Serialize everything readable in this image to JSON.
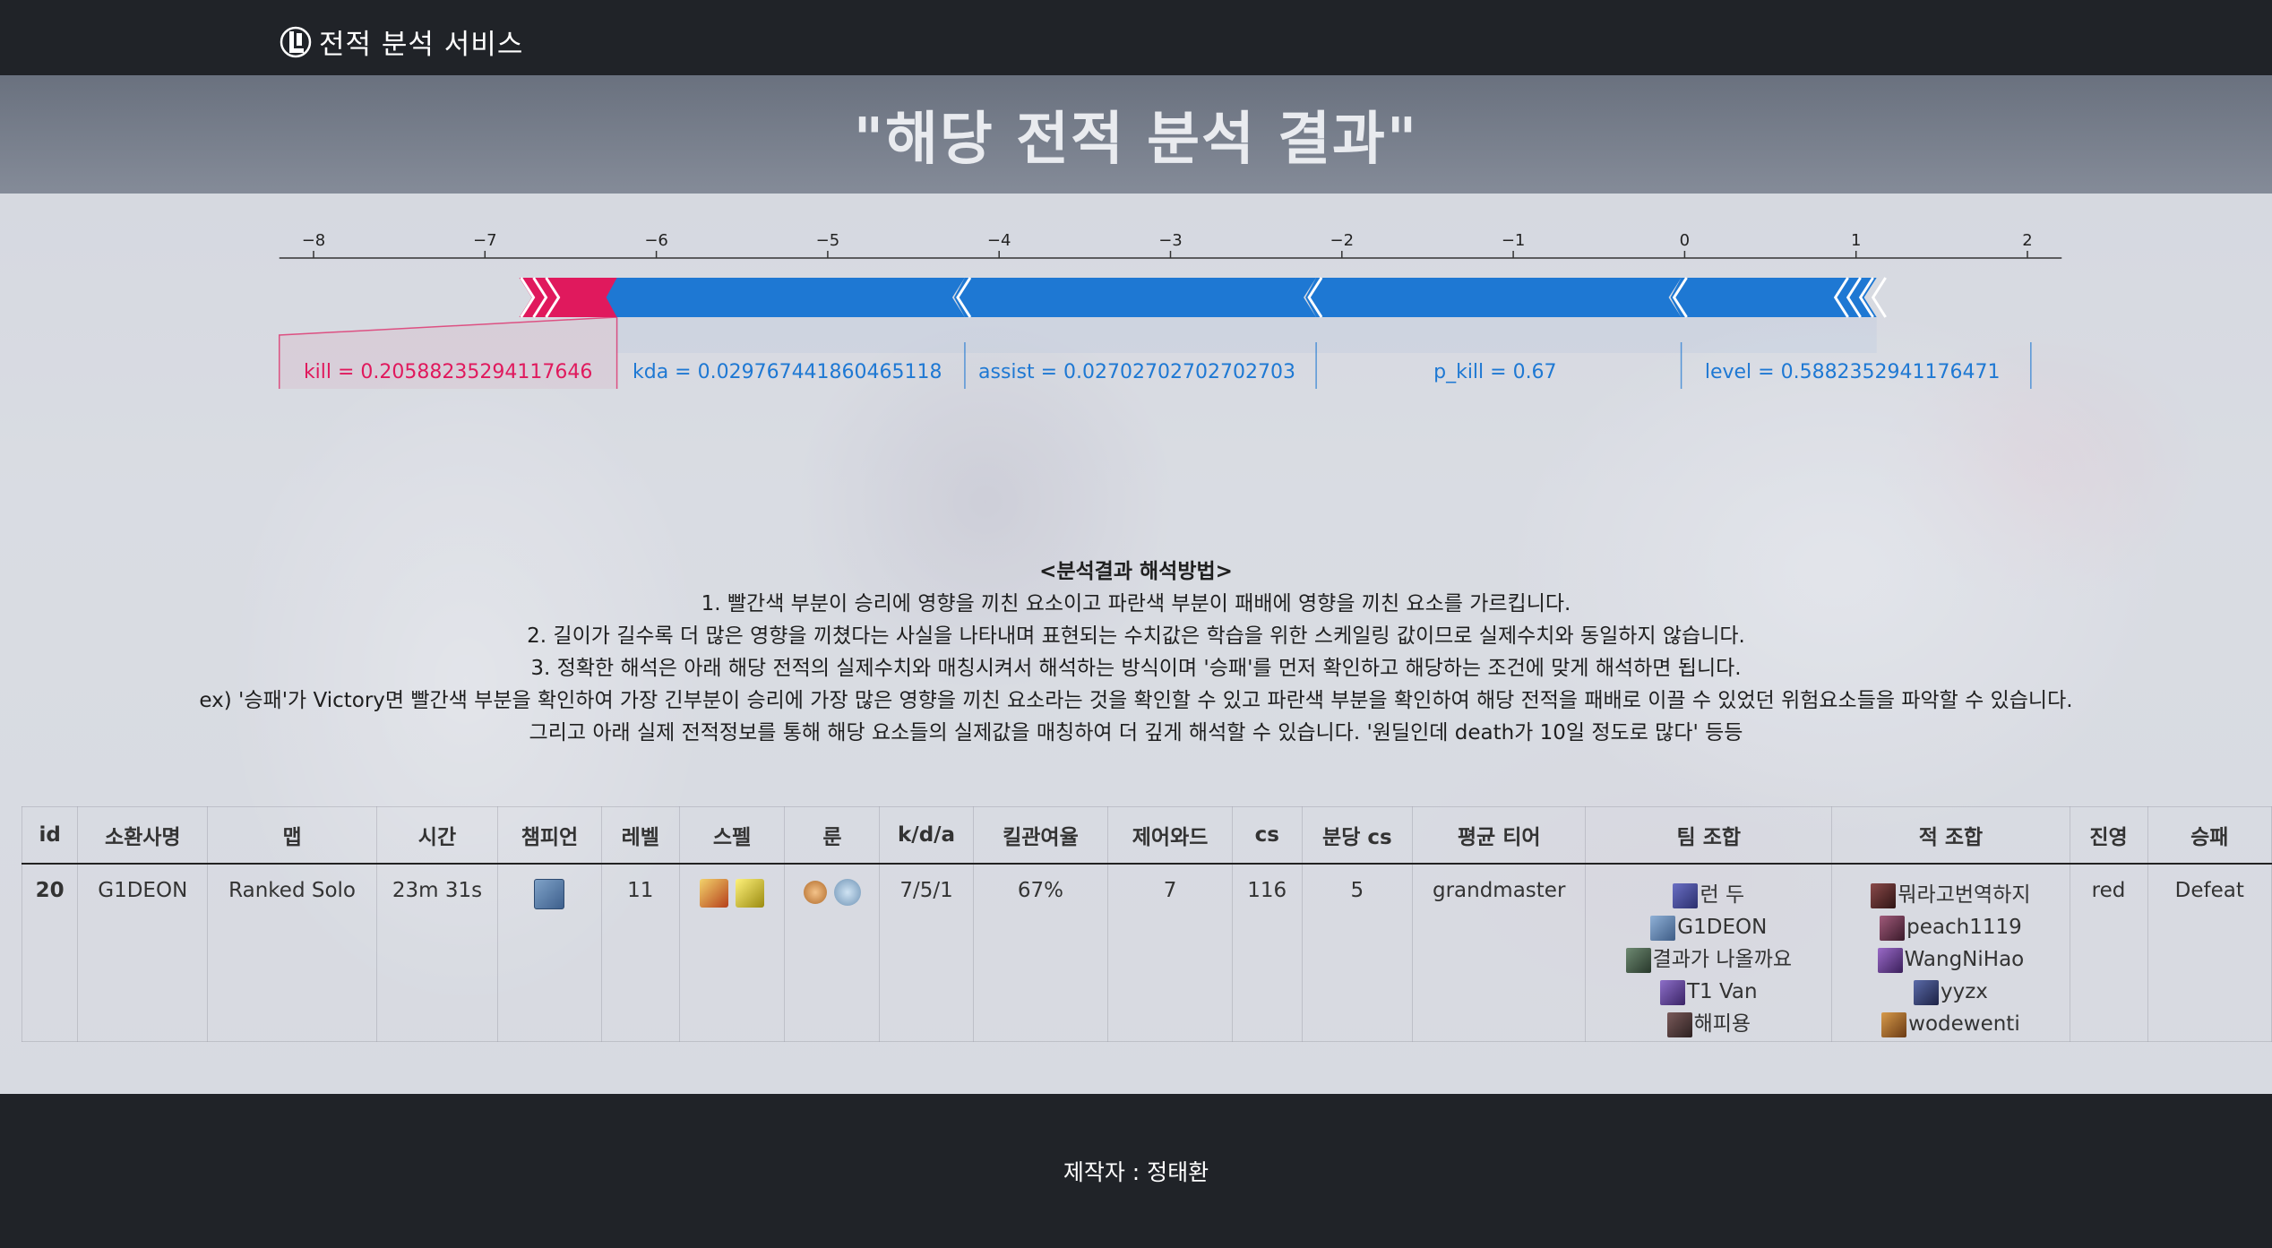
{
  "navbar": {
    "brand": "전적 분석 서비스",
    "logo_icon": "lol-logo-icon"
  },
  "hero": {
    "title": "\"해당 전적 분석 결과\""
  },
  "chart_data": {
    "type": "force",
    "axis_ticks": [
      "−8",
      "−7",
      "−6",
      "−5",
      "−4",
      "−3",
      "−2",
      "−1",
      "0",
      "1",
      "2"
    ],
    "axis_range": [
      -8.2,
      2.2
    ],
    "red_segments": [
      {
        "label": "kill = 0.20588235294117646",
        "start": -6.23,
        "end": -6.8
      }
    ],
    "blue_segments": [
      {
        "label": "kda = 0.029767441860465118",
        "start": -6.23,
        "end": -4.2
      },
      {
        "label": "assist = 0.02702702702702703",
        "start": -4.2,
        "end": -2.15
      },
      {
        "label": "p_kill = 0.67",
        "start": -2.15,
        "end": -0.02
      },
      {
        "label": "level = 0.5882352941176471",
        "start": -0.02,
        "end": 1.12
      }
    ],
    "colors": {
      "positive": "#e0195d",
      "negative": "#1e78d3"
    }
  },
  "legend": {
    "title": "<분석결과 해석방법>",
    "lines": [
      "1. 빨간색 부분이 승리에 영향을 끼친 요소이고 파란색 부분이 패배에 영향을 끼친 요소를 가르킵니다.",
      "2. 길이가 길수록 더 많은 영향을 끼쳤다는 사실을 나타내며 표현되는 수치값은 학습을 위한 스케일링 값이므로 실제수치와 동일하지 않습니다.",
      "3. 정확한 해석은 아래 해당 전적의 실제수치와 매칭시켜서 해석하는 방식이며 '승패'를 먼저 확인하고 해당하는 조건에 맞게 해석하면 됩니다.",
      "ex) '승패'가 Victory면 빨간색 부분을 확인하여 가장 긴부분이 승리에 가장 많은 영향을 끼친 요소라는 것을 확인할 수 있고 파란색 부분을 확인하여 해당 전적을 패배로 이끌 수 있었던 위험요소들을 파악할 수 있습니다.",
      "그리고 아래 실제 전적정보를 통해 해당 요소들의 실제값을 매칭하여 더 깊게 해석할 수 있습니다. '원딜인데 death가 10일 정도로 많다' 등등"
    ]
  },
  "table": {
    "headers": [
      "id",
      "소환사명",
      "맵",
      "시간",
      "챔피언",
      "레벨",
      "스펠",
      "룬",
      "k/d/a",
      "킬관여율",
      "제어와드",
      "cs",
      "분당 cs",
      "평균 티어",
      "팀 조합",
      "적 조합",
      "진영",
      "승패"
    ],
    "row": {
      "id": "20",
      "summoner": "G1DEON",
      "map": "Ranked Solo",
      "time": "23m 31s",
      "champion_icon": "champion-portrait-icon",
      "level": "11",
      "spells": [
        "flash-spell-icon",
        "lightning-spell-icon"
      ],
      "runes": [
        "primary-rune-icon",
        "secondary-rune-icon"
      ],
      "kda": "7/5/1",
      "kill_participation": "67%",
      "control_wards": "7",
      "cs": "116",
      "cs_per_min": "5",
      "avg_tier": "grandmaster",
      "team": [
        "런 두",
        "G1DEON",
        "결과가 나올까요",
        "T1 Van",
        "해피용"
      ],
      "enemy": [
        "뭐라고번역하지",
        "peach1119",
        "WangNiHao",
        "yyzx",
        "wodewenti"
      ],
      "side": "red",
      "result": "Defeat"
    }
  },
  "footer": {
    "credit": "제작자 : 정태환"
  }
}
